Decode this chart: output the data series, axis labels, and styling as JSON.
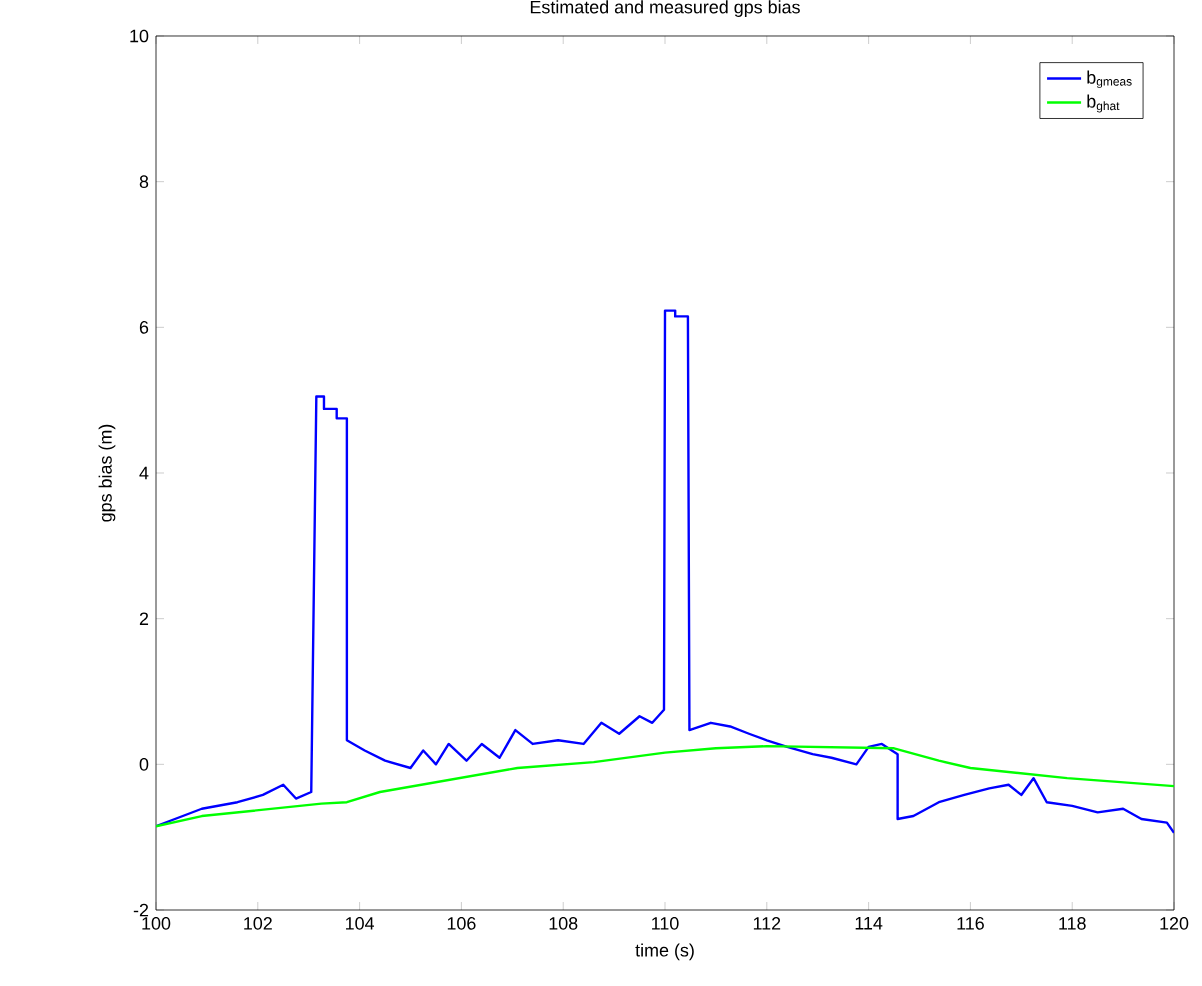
{
  "chart_data": {
    "type": "line",
    "title": "Estimated and measured gps bias",
    "xlabel": "time (s)",
    "ylabel": "gps bias (m)",
    "xlim": [
      100,
      120
    ],
    "ylim": [
      -2,
      10
    ],
    "xticks": [
      100,
      102,
      104,
      106,
      108,
      110,
      112,
      114,
      116,
      118,
      120
    ],
    "yticks": [
      -2,
      0,
      2,
      4,
      6,
      8,
      10
    ],
    "grid": false,
    "legend": "top right",
    "marker": "none",
    "line_style": "solid",
    "series": [
      {
        "name": "b$_{gmeas}$",
        "color": "#0000ff",
        "x": [
          100,
          100.9,
          101.6,
          102.1,
          102.5,
          102.75,
          103.05,
          103.15,
          103.3,
          103.3,
          103.55,
          103.55,
          103.75,
          103.75,
          104.1,
          104.5,
          105.0,
          105.25,
          105.5,
          105.75,
          106.1,
          106.4,
          106.75,
          107.06,
          107.4,
          107.9,
          108.4,
          108.75,
          109.1,
          109.5,
          109.75,
          109.98,
          110.0,
          110.2,
          110.2,
          110.45,
          110.48,
          110.9,
          111.28,
          111.65,
          112.0,
          112.4,
          112.9,
          113.27,
          113.76,
          114.0,
          114.26,
          114.57,
          114.57,
          114.88,
          115.38,
          115.88,
          116.37,
          116.75,
          117.0,
          117.24,
          117.5,
          118.0,
          118.5,
          119.0,
          119.36,
          119.86,
          120
        ],
        "values": [
          -0.85,
          -0.61,
          -0.52,
          -0.42,
          -0.28,
          -0.47,
          -0.38,
          5.05,
          5.05,
          4.88,
          4.88,
          4.75,
          4.75,
          0.33,
          0.19,
          0.05,
          -0.05,
          0.19,
          0.0,
          0.28,
          0.05,
          0.28,
          0.09,
          0.47,
          0.28,
          0.33,
          0.28,
          0.57,
          0.42,
          0.66,
          0.57,
          0.75,
          6.23,
          6.23,
          6.15,
          6.15,
          0.47,
          0.57,
          0.52,
          0.42,
          0.33,
          0.24,
          0.14,
          0.09,
          0.0,
          0.24,
          0.28,
          0.14,
          -0.75,
          -0.71,
          -0.52,
          -0.42,
          -0.33,
          -0.28,
          -0.42,
          -0.19,
          -0.52,
          -0.57,
          -0.66,
          -0.61,
          -0.75,
          -0.8,
          -0.94
        ]
      },
      {
        "name": "b$_{ghat}$",
        "color": "#00ff00",
        "x": [
          100,
          100.9,
          103.25,
          103.75,
          104.4,
          107.1,
          108.6,
          110.0,
          111.0,
          112.0,
          114.5,
          115.38,
          116.0,
          117.9,
          120
        ],
        "values": [
          -0.85,
          -0.71,
          -0.54,
          -0.52,
          -0.38,
          -0.05,
          0.03,
          0.16,
          0.22,
          0.25,
          0.22,
          0.05,
          -0.05,
          -0.19,
          -0.3
        ]
      }
    ]
  }
}
